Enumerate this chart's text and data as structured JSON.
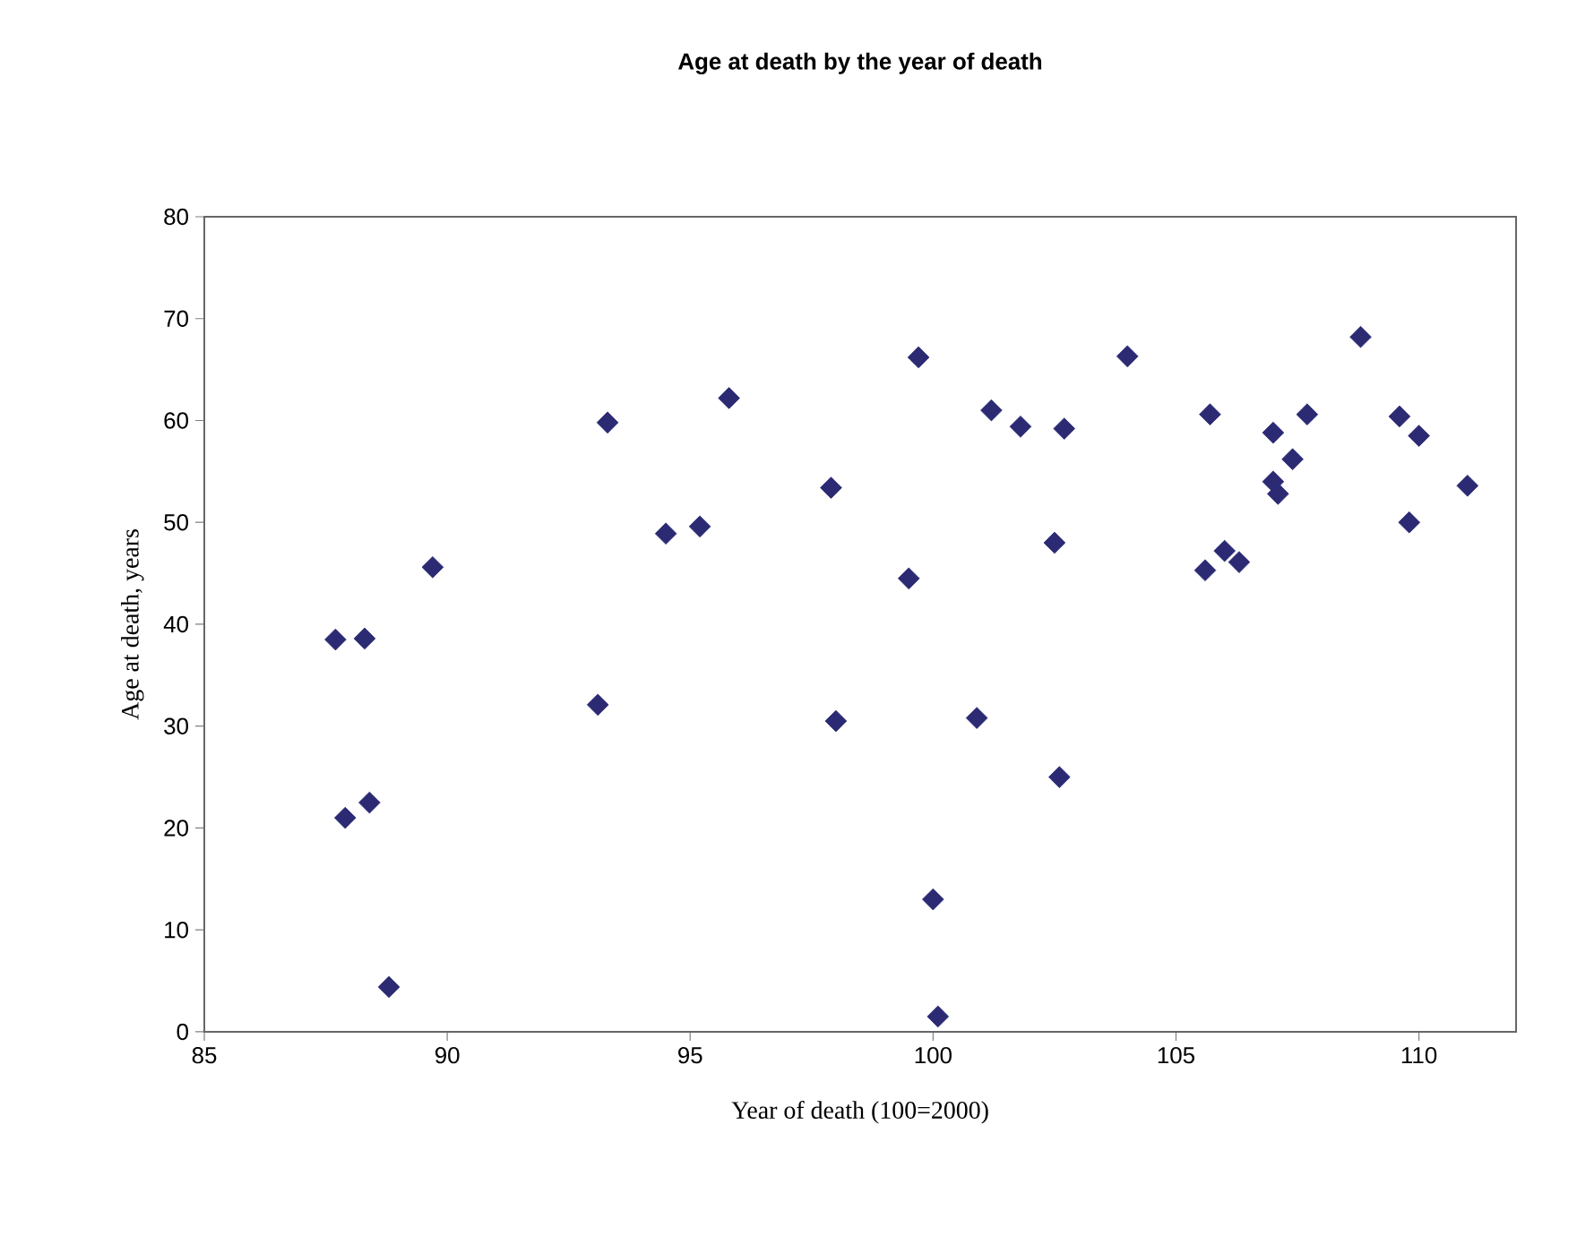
{
  "chart_data": {
    "type": "scatter",
    "title": "Age at death by the year of death",
    "xlabel": "Year of death (100=2000)",
    "ylabel": "Age at death, years",
    "x": [
      87.7,
      88.3,
      89.7,
      87.9,
      88.4,
      88.8,
      93.3,
      95.8,
      97.9,
      94.5,
      95.2,
      93.1,
      98.0,
      99.7,
      104.0,
      101.2,
      101.8,
      102.7,
      105.7,
      107.0,
      107.7,
      108.8,
      109.6,
      110.0,
      107.4,
      107.0,
      107.1,
      111.0,
      109.8,
      102.5,
      105.6,
      106.0,
      106.3,
      99.5,
      100.9,
      102.6,
      100.0,
      100.1
    ],
    "values": [
      38.5,
      38.6,
      45.6,
      21.0,
      22.5,
      4.4,
      59.8,
      62.2,
      53.4,
      48.9,
      49.6,
      32.1,
      30.5,
      66.2,
      66.3,
      61.0,
      59.4,
      59.2,
      60.6,
      58.8,
      60.6,
      68.2,
      60.4,
      58.5,
      56.2,
      54.0,
      52.8,
      53.6,
      50.0,
      48.0,
      45.3,
      47.2,
      46.1,
      44.5,
      30.8,
      25.0,
      13.0,
      1.5
    ],
    "color": "#2b2a73",
    "marker": "diamond",
    "grid": false,
    "xlim": [
      85,
      112
    ],
    "xticks": [
      85,
      90,
      95,
      100,
      105,
      110
    ],
    "ylim": [
      0,
      80
    ],
    "yticks": [
      0,
      10,
      20,
      30,
      40,
      50,
      60,
      70,
      80
    ]
  }
}
